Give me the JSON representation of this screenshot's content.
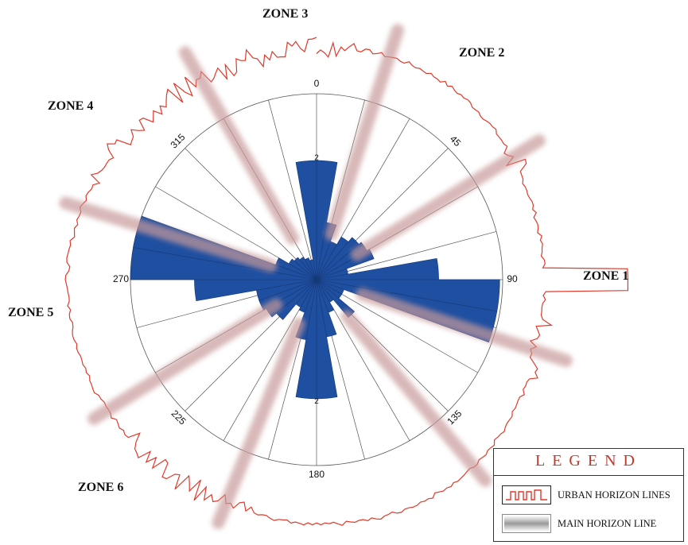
{
  "chart_data": {
    "type": "rose",
    "angular_ticks": [
      "0",
      "45",
      "90",
      "135",
      "180",
      "225",
      "270",
      "315"
    ],
    "radial_ticks": [
      "2",
      "2"
    ],
    "sector_width_deg": 10,
    "rmax": 3.2,
    "sectors": [
      {
        "start": 0,
        "end": 10,
        "value": 2.05
      },
      {
        "start": 10,
        "end": 20,
        "value": 1.0
      },
      {
        "start": 20,
        "end": 30,
        "value": 0.7
      },
      {
        "start": 30,
        "end": 40,
        "value": 0.85
      },
      {
        "start": 40,
        "end": 50,
        "value": 0.95
      },
      {
        "start": 50,
        "end": 60,
        "value": 1.0
      },
      {
        "start": 60,
        "end": 70,
        "value": 1.05
      },
      {
        "start": 70,
        "end": 80,
        "value": 0.55
      },
      {
        "start": 80,
        "end": 90,
        "value": 2.1
      },
      {
        "start": 90,
        "end": 100,
        "value": 3.15
      },
      {
        "start": 100,
        "end": 110,
        "value": 3.15
      },
      {
        "start": 110,
        "end": 120,
        "value": 0.5
      },
      {
        "start": 120,
        "end": 130,
        "value": 0.5
      },
      {
        "start": 130,
        "end": 140,
        "value": 0.85
      },
      {
        "start": 140,
        "end": 150,
        "value": 0.45
      },
      {
        "start": 150,
        "end": 160,
        "value": 0.6
      },
      {
        "start": 160,
        "end": 170,
        "value": 1.0
      },
      {
        "start": 170,
        "end": 180,
        "value": 2.05
      },
      {
        "start": 180,
        "end": 190,
        "value": 2.05
      },
      {
        "start": 190,
        "end": 200,
        "value": 1.05
      },
      {
        "start": 200,
        "end": 210,
        "value": 0.6
      },
      {
        "start": 210,
        "end": 220,
        "value": 0.55
      },
      {
        "start": 220,
        "end": 230,
        "value": 0.9
      },
      {
        "start": 230,
        "end": 240,
        "value": 1.0
      },
      {
        "start": 240,
        "end": 250,
        "value": 1.05
      },
      {
        "start": 250,
        "end": 260,
        "value": 1.05
      },
      {
        "start": 260,
        "end": 270,
        "value": 2.1
      },
      {
        "start": 270,
        "end": 280,
        "value": 3.2
      },
      {
        "start": 280,
        "end": 290,
        "value": 3.2
      },
      {
        "start": 290,
        "end": 300,
        "value": 0.75
      },
      {
        "start": 300,
        "end": 310,
        "value": 0.55
      },
      {
        "start": 310,
        "end": 320,
        "value": 0.5
      },
      {
        "start": 320,
        "end": 330,
        "value": 0.45
      },
      {
        "start": 330,
        "end": 340,
        "value": 0.4
      },
      {
        "start": 340,
        "end": 350,
        "value": 0.35
      },
      {
        "start": 350,
        "end": 360,
        "value": 2.05
      }
    ],
    "main_horizon_directions_deg": [
      18,
      58,
      108,
      140,
      202,
      238,
      287,
      330
    ],
    "zones": [
      "ZONE 1",
      "ZONE 2",
      "ZONE 3",
      "ZONE 4",
      "ZONE 5",
      "ZONE 6"
    ]
  },
  "colors": {
    "sector_fill": "#1f4fa0",
    "sector_stroke": "#163a78",
    "grid": "#555555",
    "urban_horizon": "#e03a2a",
    "main_horizon": "#c89a9a",
    "legend_title": "#c0392b"
  },
  "legend": {
    "title": "LEGEND",
    "items": [
      {
        "label": "URBAN HORIZON LINES",
        "icon": "urban-horizon-line-icon"
      },
      {
        "label": "MAIN HORIZON LINE",
        "icon": "main-horizon-line-icon"
      }
    ]
  }
}
